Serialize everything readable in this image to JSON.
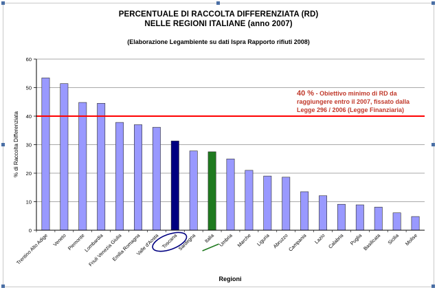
{
  "chart_data": {
    "type": "bar",
    "title_line1": "PERCENTUALE DI RACCOLTA DIFFERENZIATA (RD)",
    "title_line2": "NELLE REGIONI ITALIANE (anno 2007)",
    "subtitle": "(Elaborazione Legambiente su dati Ispra Rapporto rifiuti 2008)",
    "xlabel": "Regioni",
    "ylabel": "% di Raccolta Differenziata",
    "ylim": [
      0,
      60
    ],
    "yticks": [
      "0",
      "10",
      "20",
      "30",
      "40",
      "50",
      "60"
    ],
    "grid": true,
    "categories": [
      "Trentino Alto Adige",
      "Veneto",
      "Piemonte",
      "Lombardia",
      "Friuli Venezia Giulia",
      "Emilia Romagna",
      "Valle d'Aosta",
      "Toscana",
      "Sardegna",
      "Italia",
      "Umbria",
      "Marche",
      "Liguria",
      "Abruzzo",
      "Campania",
      "Lazio",
      "Calabria",
      "Puglia",
      "Basilicata",
      "Sicilia",
      "Molise"
    ],
    "values": [
      53.4,
      51.4,
      44.8,
      44.5,
      37.8,
      37.0,
      36.1,
      31.3,
      27.8,
      27.5,
      25.0,
      21.0,
      19.0,
      18.6,
      13.5,
      12.1,
      9.1,
      8.9,
      8.1,
      6.1,
      4.8
    ],
    "colors": {
      "default": "#9999ff",
      "highlight": "#000080",
      "national": "#1f7a1f",
      "target_line": "#ff0000",
      "annotation": "#c0392b",
      "grid": "#8c8c8c"
    },
    "highlight_index": 7,
    "national_index": 9,
    "target": {
      "value": 40,
      "label_strong": "40 %",
      "label_line1": " - Obiettivo minimo di RD da",
      "label_line2": "raggiungere entro il 2007, fissato dalla",
      "label_line3": "Legge 296 / 2006 (Legge Finanziaria)"
    }
  }
}
